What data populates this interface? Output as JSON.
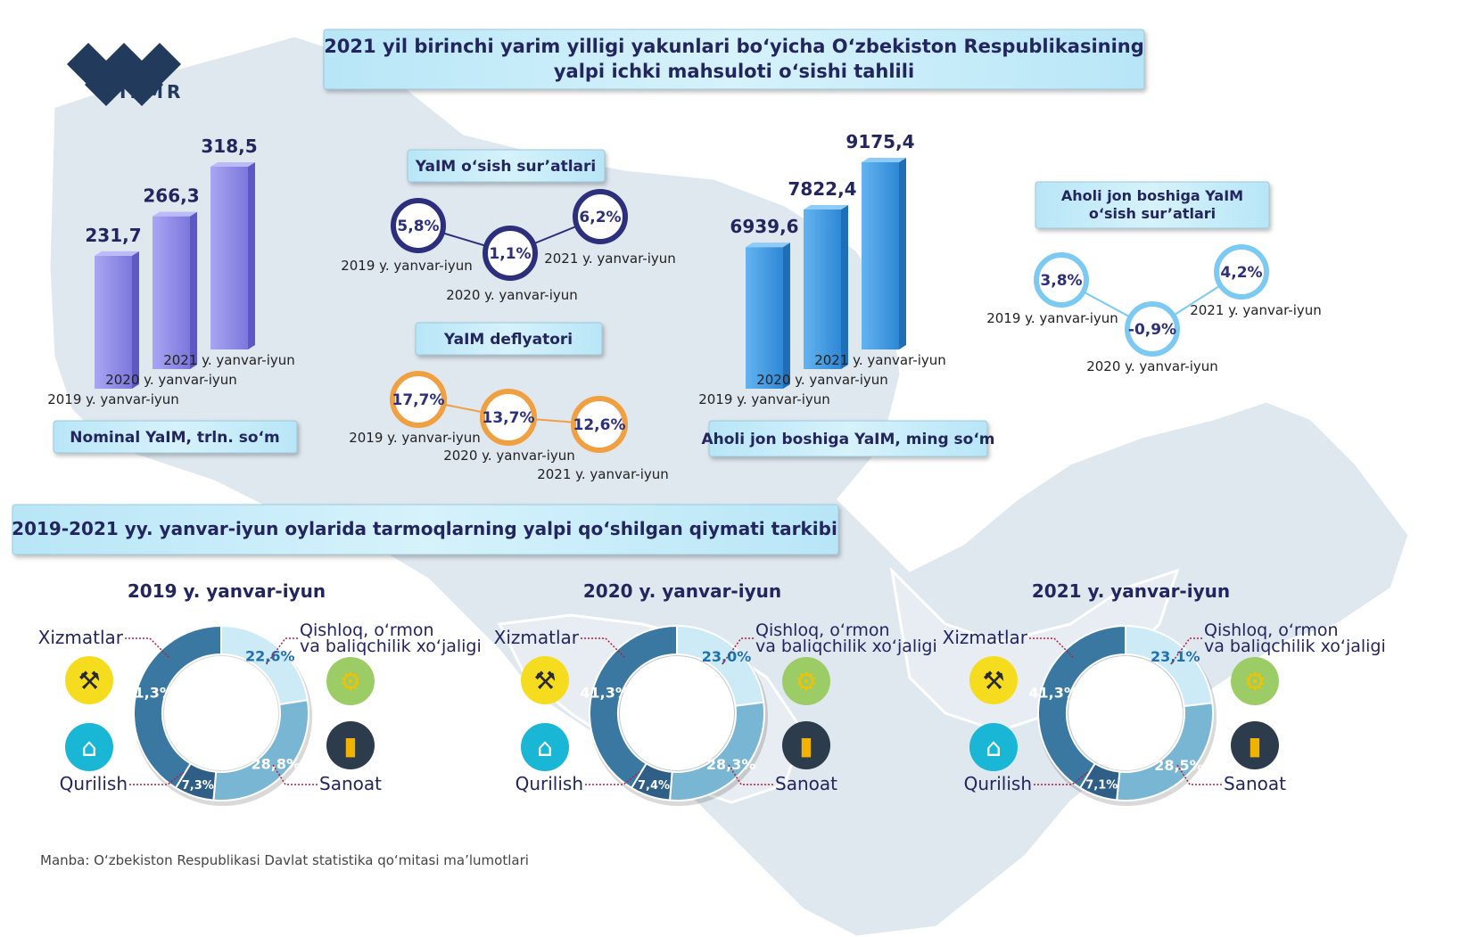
{
  "brand": {
    "logo_text": "IFMR"
  },
  "title": {
    "line1": "2021 yil birinchi yarim yilligi yakunlari bo‘yicha O‘zbekiston Respublikasining",
    "line2": "yalpi ichki mahsuloti o‘sishi tahlili"
  },
  "colors": {
    "title_navy": "#23265e",
    "banner_bg": "#c6ecf8",
    "bar_purple": "#8f8bea",
    "bar_blue": "#3f9be3",
    "circle_navy": "#2c2f7c",
    "circle_orange": "#f0a040",
    "circle_light_blue": "#7ccaf2",
    "map_fill": "#dde6ee",
    "donut_dark": "#3a78a2",
    "donut_mid": "#79b6d3",
    "donut_light": "#cdebf6"
  },
  "chart_data": [
    {
      "type": "bar",
      "label": "Nominal YaIM, trln. so‘m",
      "categories": [
        "2019 y. yanvar-iyun",
        "2020 y. yanvar-iyun",
        "2021 y. yanvar-iyun"
      ],
      "values": [
        231.7,
        266.3,
        318.5
      ],
      "value_labels": [
        "231,7",
        "266,3",
        "318,5"
      ]
    },
    {
      "type": "line",
      "title": "YaIM o‘sish sur’atlari",
      "categories": [
        "2019 y. yanvar-iyun",
        "2020 y. yanvar-iyun",
        "2021 y. yanvar-iyun"
      ],
      "values": [
        5.8,
        1.1,
        6.2
      ],
      "value_labels": [
        "5,8%",
        "1,1%",
        "6,2%"
      ]
    },
    {
      "type": "line",
      "title": "YaIM deflyatori",
      "categories": [
        "2019 y. yanvar-iyun",
        "2020 y. yanvar-iyun",
        "2021 y. yanvar-iyun"
      ],
      "values": [
        17.7,
        13.7,
        12.6
      ],
      "value_labels": [
        "17,7%",
        "13,7%",
        "12,6%"
      ]
    },
    {
      "type": "bar",
      "label": "Aholi jon boshiga YaIM, ming so‘m",
      "categories": [
        "2019 y. yanvar-iyun",
        "2020 y. yanvar-iyun",
        "2021 y. yanvar-iyun"
      ],
      "values": [
        6939.6,
        7822.4,
        9175.4
      ],
      "value_labels": [
        "6939,6",
        "7822,4",
        "9175,4"
      ]
    },
    {
      "type": "line",
      "title": "Aholi jon boshiga YaIM o‘sish sur’atlari",
      "title_lines": [
        "Aholi jon boshiga YaIM",
        "o‘sish sur’atlari"
      ],
      "categories": [
        "2019 y. yanvar-iyun",
        "2020 y. yanvar-iyun",
        "2021 y. yanvar-iyun"
      ],
      "values": [
        3.8,
        -0.9,
        4.2
      ],
      "value_labels": [
        "3,8%",
        "-0,9%",
        "4,2%"
      ]
    },
    {
      "type": "pie",
      "title": "2019 y. yanvar-iyun",
      "categories": [
        "Qishloq, o‘rmon va baliqchilik xo‘jaligi",
        "Sanoat",
        "Qurilish",
        "Xizmatlar"
      ],
      "values": [
        22.6,
        28.8,
        7.3,
        41.3
      ],
      "value_labels": [
        "22,6%",
        "28,8%",
        "7,3%",
        "41,3%"
      ]
    },
    {
      "type": "pie",
      "title": "2020 y. yanvar-iyun",
      "categories": [
        "Qishloq, o‘rmon va baliqchilik xo‘jaligi",
        "Sanoat",
        "Qurilish",
        "Xizmatlar"
      ],
      "values": [
        23.0,
        28.3,
        7.4,
        41.3
      ],
      "value_labels": [
        "23,0%",
        "28,3%",
        "7,4%",
        "41,3%"
      ]
    },
    {
      "type": "pie",
      "title": "2021 y. yanvar-iyun",
      "categories": [
        "Qishloq, o‘rmon va baliqchilik xo‘jaligi",
        "Sanoat",
        "Qurilish",
        "Xizmatlar"
      ],
      "values": [
        23.1,
        28.5,
        7.1,
        41.3
      ],
      "value_labels": [
        "23,1%",
        "28,5%",
        "7,1%",
        "41,3%"
      ]
    }
  ],
  "structure_title": "2019-2021 yy. yanvar-iyun oylarida tarmoqlarning yalpi qo‘shilgan qiymati tarkibi",
  "sector_labels": {
    "services": "Xizmatlar",
    "agriculture_line1": "Qishloq, o‘rmon",
    "agriculture_line2": "va baliqchilik xo‘jaligi",
    "construction": "Qurilish",
    "industry": "Sanoat"
  },
  "icons": [
    "tools-icon",
    "tractor-icon",
    "crane-icon",
    "factory-icon"
  ],
  "source": "Manba: O‘zbekiston Respublikasi Davlat statistika qo‘mitasi ma’lumotlari"
}
